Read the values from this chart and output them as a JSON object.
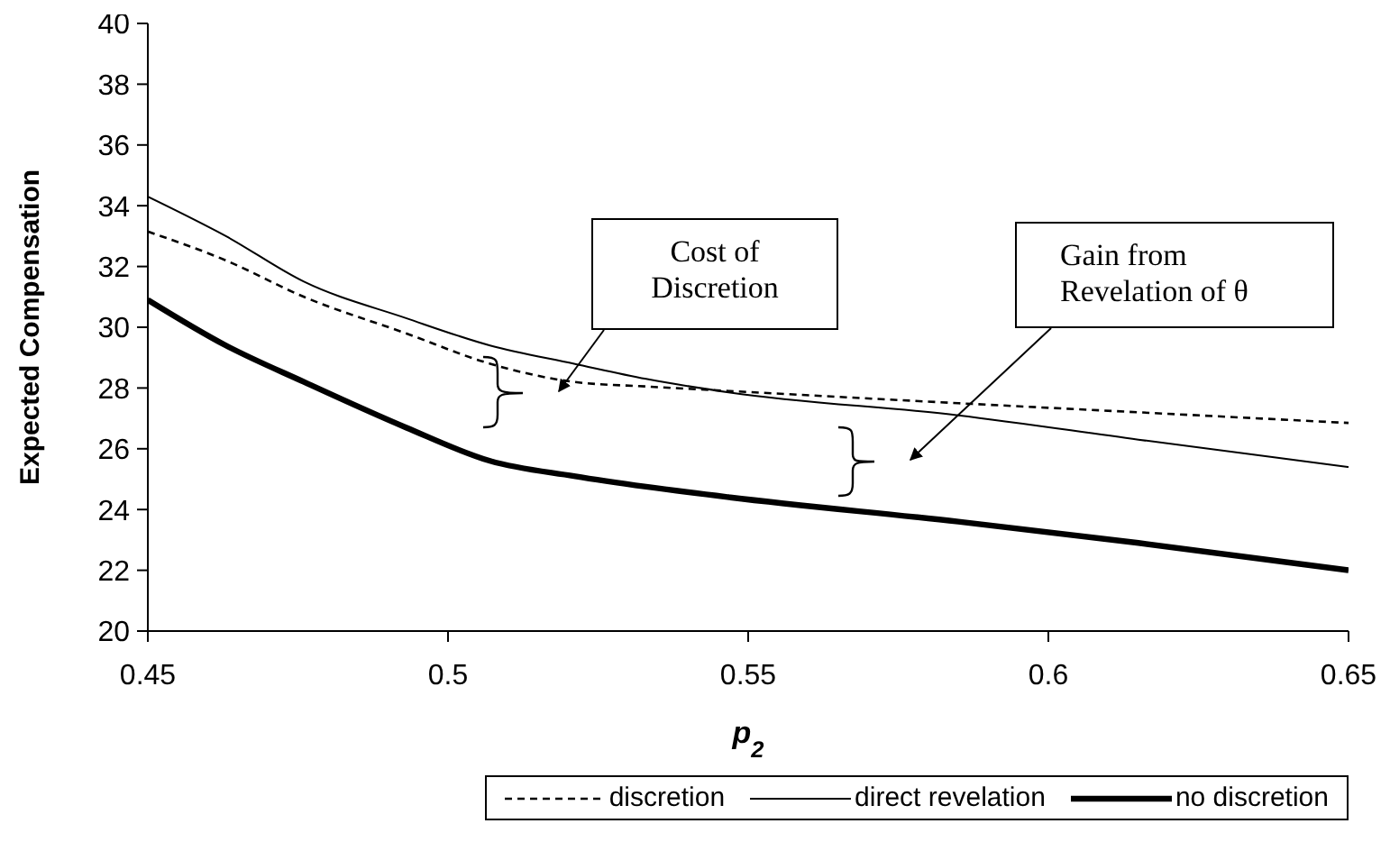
{
  "chart_data": {
    "type": "line",
    "xlabel": "p$_{2}$",
    "ylabel": "Expected Compensation",
    "x": [
      0.45,
      0.463,
      0.476,
      0.493,
      0.507,
      0.521,
      0.533,
      0.547,
      0.585,
      0.615,
      0.65
    ],
    "series": [
      {
        "name": "discretion",
        "color": "#000000",
        "line_style": "dashed",
        "values": [
          33.15,
          32.2,
          31.0,
          29.8,
          28.8,
          28.2,
          28.05,
          27.9,
          27.5,
          27.2,
          26.85
        ]
      },
      {
        "name": "direct revelation",
        "color": "#000000",
        "line_style": "solid",
        "values": [
          34.3,
          33.0,
          31.5,
          30.3,
          29.4,
          28.8,
          28.3,
          27.85,
          27.1,
          26.3,
          25.4
        ]
      },
      {
        "name": "no discretion",
        "color": "#000000",
        "line_style": "solid",
        "values": [
          30.9,
          29.4,
          28.2,
          26.7,
          25.6,
          25.1,
          24.75,
          24.4,
          23.6,
          22.9,
          22.0
        ]
      }
    ],
    "xlim": [
      0.45,
      0.65
    ],
    "xticks": [
      0.45,
      0.5,
      0.55,
      0.6,
      0.65
    ],
    "ylim": [
      20,
      40
    ],
    "yticks": [
      20,
      22,
      24,
      26,
      28,
      30,
      32,
      34,
      36,
      38,
      40
    ],
    "legend": "bottom",
    "marker": "none",
    "annotations": [
      "Cost of Discretion",
      "Gain from Revelation of θ"
    ]
  }
}
